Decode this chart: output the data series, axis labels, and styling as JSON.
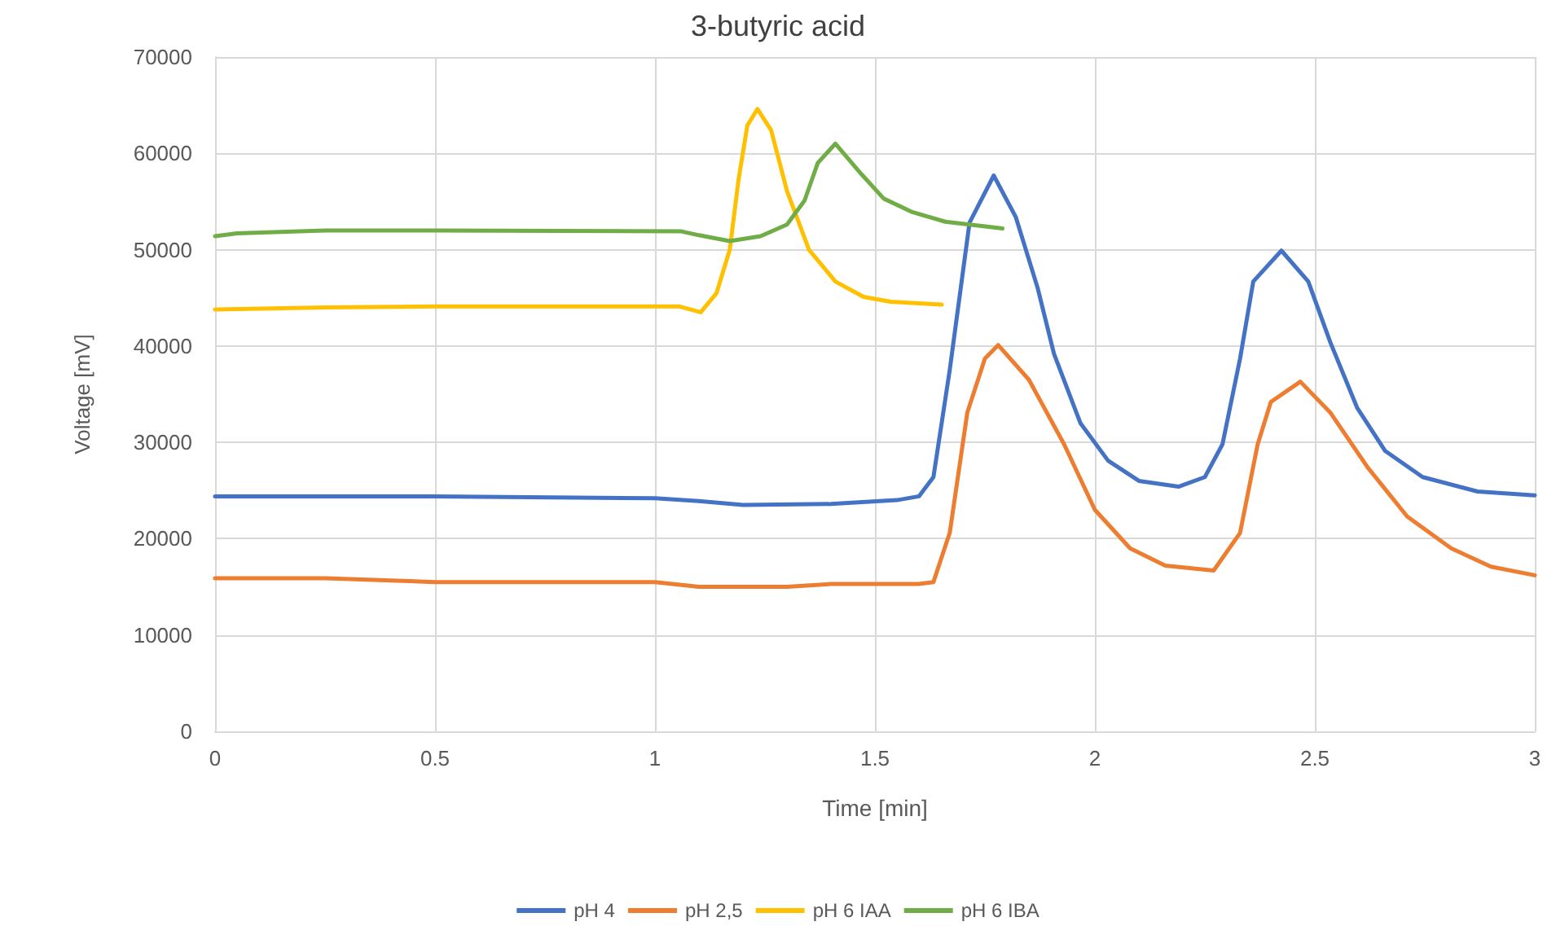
{
  "chart_data": {
    "type": "line",
    "title": "3-butyric acid",
    "xlabel": "Time [min]",
    "ylabel": "Voltage [mV]",
    "xlim": [
      0,
      3
    ],
    "xticks": [
      0,
      0.5,
      1,
      1.5,
      2,
      2.5,
      3
    ],
    "ylim": [
      0,
      70000
    ],
    "yticks": [
      0,
      10000,
      20000,
      30000,
      40000,
      50000,
      60000,
      70000
    ],
    "grid": true,
    "legend": "bottom",
    "marker": "none",
    "line_style": "solid",
    "series": [
      {
        "name": "pH 4",
        "color": "#4472c4",
        "x": [
          0,
          0.5,
          1,
          1.1,
          1.2,
          1.4,
          1.55,
          1.6,
          1.633,
          1.67,
          1.715,
          1.77,
          1.82,
          1.87,
          1.907,
          1.967,
          2.03,
          2.1,
          2.19,
          2.25,
          2.29,
          2.33,
          2.36,
          2.424,
          2.485,
          2.535,
          2.596,
          2.66,
          2.745,
          2.87,
          3
        ],
        "values": [
          24400,
          24400,
          24200,
          23900,
          23500,
          23600,
          24000,
          24400,
          26400,
          37500,
          52800,
          57700,
          53400,
          46000,
          39200,
          32000,
          28100,
          26000,
          25400,
          26400,
          29800,
          38700,
          46700,
          49900,
          46700,
          40400,
          33600,
          29100,
          26400,
          24900,
          24500
        ]
      },
      {
        "name": "pH 2,5",
        "color": "#ed7d31",
        "x": [
          0,
          0.25,
          0.5,
          1,
          1.1,
          1.3,
          1.4,
          1.6,
          1.633,
          1.67,
          1.71,
          1.75,
          1.78,
          1.85,
          1.93,
          2,
          2.08,
          2.16,
          2.27,
          2.33,
          2.37,
          2.4,
          2.467,
          2.535,
          2.62,
          2.71,
          2.81,
          2.9,
          3
        ],
        "values": [
          15900,
          15900,
          15500,
          15500,
          15000,
          15000,
          15300,
          15300,
          15500,
          20600,
          33100,
          38700,
          40100,
          36500,
          29800,
          23000,
          19000,
          17200,
          16700,
          20600,
          29800,
          34200,
          36300,
          33100,
          27400,
          22300,
          19000,
          17100,
          16200
        ]
      },
      {
        "name": "pH 6 IAA",
        "color": "#ffc000",
        "x": [
          0,
          0.25,
          0.5,
          1.056,
          1.104,
          1.14,
          1.17,
          1.19,
          1.21,
          1.233,
          1.264,
          1.3,
          1.35,
          1.41,
          1.474,
          1.536,
          1.652
        ],
        "values": [
          43800,
          44000,
          44100,
          44100,
          43500,
          45500,
          50000,
          57300,
          62900,
          64600,
          62400,
          56100,
          50000,
          46700,
          45100,
          44600,
          44300
        ]
      },
      {
        "name": "pH 6 IBA",
        "color": "#70ad47",
        "x": [
          0,
          0.05,
          0.25,
          0.5,
          1.06,
          1.1,
          1.17,
          1.24,
          1.3,
          1.34,
          1.37,
          1.41,
          1.47,
          1.52,
          1.585,
          1.66,
          1.79
        ],
        "values": [
          51400,
          51700,
          52000,
          52000,
          51900,
          51500,
          50900,
          51400,
          52600,
          55100,
          59000,
          61000,
          57800,
          55300,
          53900,
          52900,
          52200
        ]
      }
    ]
  }
}
